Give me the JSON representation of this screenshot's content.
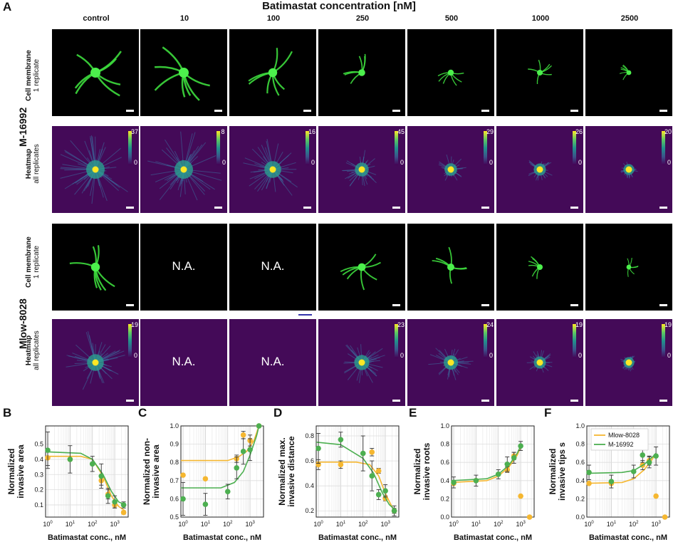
{
  "panel_letters": {
    "A": "A",
    "B": "B",
    "C": "C",
    "D": "D",
    "E": "E",
    "F": "F"
  },
  "figure_title": "Batimastat concentration [nM]",
  "columns": [
    "control",
    "10",
    "100",
    "250",
    "500",
    "1000",
    "2500"
  ],
  "groups": [
    {
      "name": "M-16992",
      "membrane_label_1": "Cell membrane",
      "membrane_label_2": "1 replicate",
      "heatmap_label_1": "Heatmap",
      "heatmap_label_2": "all replicates",
      "membrane_na": [
        false,
        false,
        false,
        false,
        false,
        false,
        false
      ],
      "heatmap_na": [
        false,
        false,
        false,
        false,
        false,
        false,
        false
      ],
      "heatmap_max": [
        "37",
        "8",
        "16",
        "45",
        "29",
        "26",
        "20"
      ]
    },
    {
      "name": "Mlow-8028",
      "membrane_label_1": "Cell membrane",
      "membrane_label_2": "1 replicate",
      "heatmap_label_1": "Heatmap",
      "heatmap_label_2": "all replicates",
      "membrane_na": [
        false,
        true,
        true,
        false,
        false,
        false,
        false
      ],
      "heatmap_na": [
        false,
        true,
        true,
        false,
        false,
        false,
        false
      ],
      "heatmap_max": [
        "19",
        "",
        "",
        "23",
        "24",
        "19",
        "19"
      ]
    }
  ],
  "na_text": "N.A.",
  "heatmap_min": "0",
  "colors": {
    "mlow": "#f5b731",
    "m16992": "#4caf50",
    "heat_bg": "#440a58"
  },
  "chart_data": [
    {
      "id": "B",
      "type": "scatter",
      "ylabel": "Normalized\ninvasive area",
      "xlabel": "Batimastat conc., nM",
      "xscale": "log",
      "xlim": [
        0.8,
        4000
      ],
      "ylim": [
        0.02,
        0.62
      ],
      "yticks": [
        0.1,
        0.2,
        0.3,
        0.4,
        0.5
      ],
      "xticks": [
        "10^0",
        "10^1",
        "10^2",
        "10^3"
      ],
      "series": [
        {
          "name": "Mlow-8028",
          "color": "#f5b731",
          "x": [
            1,
            10,
            250,
            500,
            1000,
            2500
          ],
          "y": [
            0.41,
            0.4,
            0.26,
            0.17,
            0.1,
            0.05
          ],
          "err": [
            0.05,
            0,
            0.03,
            0.03,
            0.02,
            0.01
          ],
          "fit": [
            [
              0.8,
              0.42
            ],
            [
              30,
              0.42
            ],
            [
              100,
              0.4
            ],
            [
              300,
              0.29
            ],
            [
              700,
              0.16
            ],
            [
              1500,
              0.09
            ],
            [
              3000,
              0.06
            ]
          ]
        },
        {
          "name": "M-16992",
          "color": "#4caf50",
          "x": [
            1,
            10,
            100,
            250,
            500,
            1000,
            2500
          ],
          "y": [
            0.46,
            0.4,
            0.37,
            0.29,
            0.16,
            0.12,
            0.1
          ],
          "err": [
            0.12,
            0.09,
            0.05,
            0.08,
            0.05,
            0.04,
            0.02
          ],
          "fit": [
            [
              0.8,
              0.45
            ],
            [
              30,
              0.44
            ],
            [
              100,
              0.4
            ],
            [
              300,
              0.3
            ],
            [
              700,
              0.19
            ],
            [
              1500,
              0.12
            ],
            [
              3000,
              0.1
            ]
          ]
        }
      ]
    },
    {
      "id": "C",
      "type": "scatter",
      "ylabel": "Normalized non-\ninvasive area",
      "xlabel": "Batimastat conc., nM",
      "xscale": "log",
      "xlim": [
        0.8,
        4000
      ],
      "ylim": [
        0.5,
        1.0
      ],
      "yticks": [
        0.5,
        0.6,
        0.7,
        0.8,
        0.9,
        1.0
      ],
      "xticks": [
        "10^0",
        "10^1",
        "10^2",
        "10^3"
      ],
      "series": [
        {
          "name": "Mlow-8028",
          "color": "#f5b731",
          "x": [
            1,
            10,
            250,
            500,
            1000,
            2500
          ],
          "y": [
            0.73,
            0.71,
            0.82,
            0.95,
            0.92,
            1.0
          ],
          "err": [
            0,
            0,
            0.02,
            0.02,
            0.03,
            0
          ],
          "fit": [
            [
              0.8,
              0.81
            ],
            [
              100,
              0.81
            ],
            [
              300,
              0.83
            ],
            [
              700,
              0.86
            ],
            [
              1500,
              0.92
            ],
            [
              2500,
              1.0
            ]
          ]
        },
        {
          "name": "M-16992",
          "color": "#4caf50",
          "x": [
            1,
            10,
            100,
            250,
            500,
            1000,
            2500
          ],
          "y": [
            0.6,
            0.57,
            0.64,
            0.77,
            0.86,
            0.87,
            1.0
          ],
          "err": [
            0.09,
            0.06,
            0.04,
            0.06,
            0.07,
            0.06,
            0
          ],
          "fit": [
            [
              0.8,
              0.66
            ],
            [
              50,
              0.66
            ],
            [
              200,
              0.69
            ],
            [
              500,
              0.75
            ],
            [
              1000,
              0.84
            ],
            [
              2000,
              0.95
            ],
            [
              2500,
              1.0
            ]
          ]
        }
      ]
    },
    {
      "id": "D",
      "type": "scatter",
      "ylabel": "Normalized max.\ninvasive distance",
      "xlabel": "Batimastat conc., nM",
      "xscale": "log",
      "xlim": [
        0.8,
        4000
      ],
      "ylim": [
        0.15,
        0.88
      ],
      "yticks": [
        0.2,
        0.4,
        0.6,
        0.8
      ],
      "xticks": [
        "10^0",
        "10^1",
        "10^2",
        "10^3"
      ],
      "series": [
        {
          "name": "Mlow-8028",
          "color": "#f5b731",
          "x": [
            1,
            10,
            250,
            500,
            1000,
            2500
          ],
          "y": [
            0.57,
            0.57,
            0.67,
            0.52,
            0.3,
            0.2
          ],
          "err": [
            0.04,
            0.03,
            0.03,
            0.02,
            0.02,
            0.02
          ],
          "fit": [
            [
              0.8,
              0.59
            ],
            [
              50,
              0.59
            ],
            [
              200,
              0.57
            ],
            [
              500,
              0.48
            ],
            [
              1000,
              0.34
            ],
            [
              2000,
              0.23
            ],
            [
              3000,
              0.2
            ]
          ]
        },
        {
          "name": "M-16992",
          "color": "#4caf50",
          "x": [
            1,
            10,
            100,
            250,
            500,
            1000,
            2500
          ],
          "y": [
            0.7,
            0.77,
            0.66,
            0.48,
            0.33,
            0.36,
            0.2
          ],
          "err": [
            0.12,
            0.06,
            0.14,
            0.12,
            0.04,
            0.05,
            0.04
          ],
          "fit": [
            [
              0.8,
              0.75
            ],
            [
              10,
              0.73
            ],
            [
              100,
              0.62
            ],
            [
              300,
              0.5
            ],
            [
              700,
              0.35
            ],
            [
              1500,
              0.25
            ],
            [
              3000,
              0.2
            ]
          ]
        }
      ]
    },
    {
      "id": "E",
      "type": "scatter",
      "ylabel": "Normalized\ninvasive roots",
      "xlabel": "Batimastat conc., nM",
      "xscale": "log",
      "xlim": [
        0.8,
        4000
      ],
      "ylim": [
        0.0,
        1.0
      ],
      "yticks": [
        0.0,
        0.2,
        0.4,
        0.6,
        0.8,
        1.0
      ],
      "xticks": [
        "10^0",
        "10^1",
        "10^2",
        "10^3"
      ],
      "series": [
        {
          "name": "Mlow-8028",
          "color": "#f5b731",
          "x": [
            1,
            10,
            250,
            500,
            1000,
            2500
          ],
          "y": [
            0.37,
            0.4,
            0.52,
            0.67,
            0.23,
            0.0
          ],
          "err": [
            0,
            0,
            0.03,
            0.04,
            0,
            0
          ],
          "fit": [
            [
              0.8,
              0.38
            ],
            [
              30,
              0.4
            ],
            [
              100,
              0.45
            ],
            [
              300,
              0.55
            ],
            [
              700,
              0.68
            ],
            [
              1000,
              0.77
            ]
          ]
        },
        {
          "name": "M-16992",
          "color": "#4caf50",
          "x": [
            1,
            10,
            100,
            250,
            500,
            1000
          ],
          "y": [
            0.38,
            0.4,
            0.47,
            0.58,
            0.65,
            0.78
          ],
          "err": [
            0.06,
            0.06,
            0.05,
            0.08,
            0.06,
            0.05
          ],
          "fit": [
            [
              0.8,
              0.4
            ],
            [
              30,
              0.42
            ],
            [
              100,
              0.47
            ],
            [
              300,
              0.57
            ],
            [
              700,
              0.7
            ],
            [
              1000,
              0.78
            ]
          ]
        }
      ]
    },
    {
      "id": "F",
      "type": "scatter",
      "ylabel": "Normalized\ninvasive tips s",
      "xlabel": "Batimastat conc., nM",
      "xscale": "log",
      "xlim": [
        0.8,
        4000
      ],
      "ylim": [
        0.0,
        1.0
      ],
      "yticks": [
        0.0,
        0.2,
        0.4,
        0.6,
        0.8,
        1.0
      ],
      "xticks": [
        "10^0",
        "10^1",
        "10^2",
        "10^3"
      ],
      "legend": {
        "position": "top-left",
        "entries": [
          "Mlow-8028",
          "M-16992"
        ]
      },
      "series": [
        {
          "name": "Mlow-8028",
          "color": "#f5b731",
          "x": [
            1,
            10,
            250,
            500,
            1000,
            2500
          ],
          "y": [
            0.37,
            0.37,
            0.57,
            0.62,
            0.23,
            0.0
          ],
          "err": [
            0,
            0,
            0.05,
            0.05,
            0,
            0
          ],
          "fit": [
            [
              0.8,
              0.37
            ],
            [
              30,
              0.38
            ],
            [
              100,
              0.42
            ],
            [
              300,
              0.52
            ],
            [
              700,
              0.64
            ],
            [
              1000,
              0.7
            ]
          ]
        },
        {
          "name": "M-16992",
          "color": "#4caf50",
          "x": [
            1,
            10,
            100,
            250,
            500,
            1000
          ],
          "y": [
            0.49,
            0.39,
            0.5,
            0.68,
            0.6,
            0.67
          ],
          "err": [
            0.08,
            0.07,
            0.07,
            0.08,
            0.06,
            0.1
          ],
          "fit": [
            [
              0.8,
              0.48
            ],
            [
              30,
              0.49
            ],
            [
              100,
              0.51
            ],
            [
              300,
              0.58
            ],
            [
              700,
              0.66
            ],
            [
              1000,
              0.7
            ]
          ]
        }
      ]
    }
  ]
}
